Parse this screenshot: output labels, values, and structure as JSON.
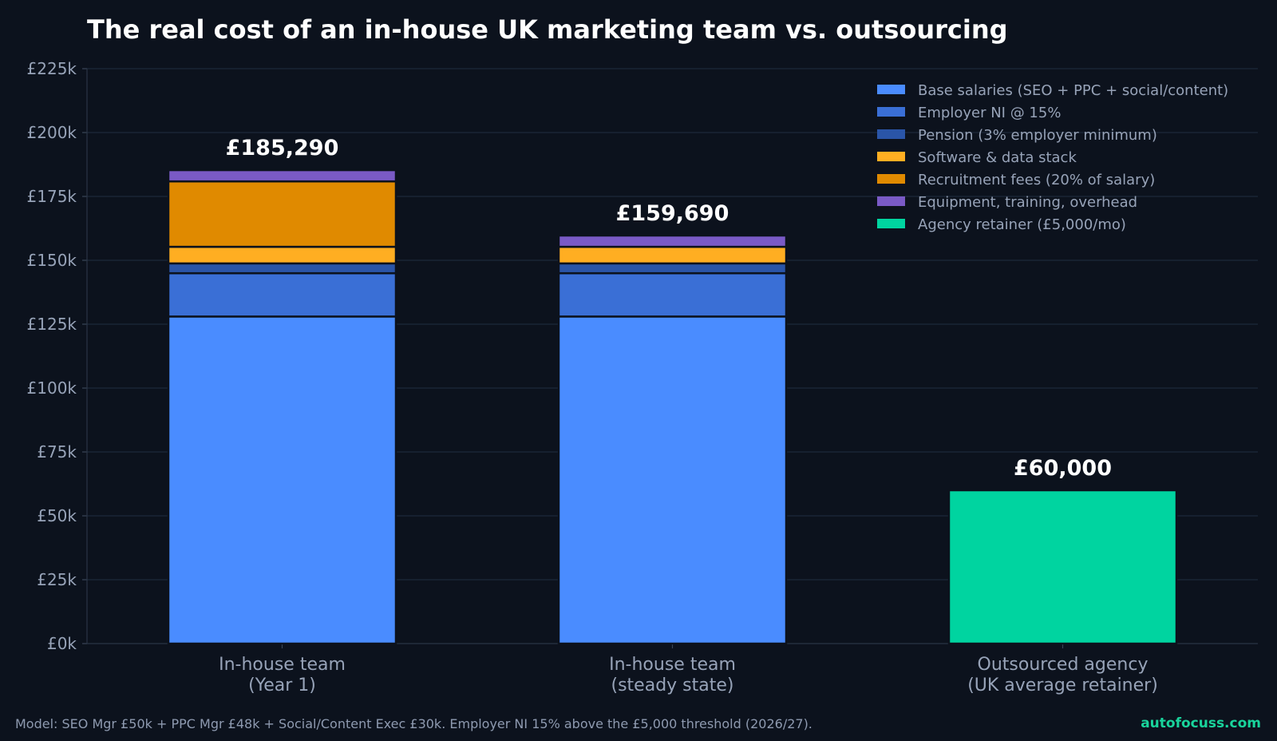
{
  "chart_data": {
    "type": "bar",
    "stacked": true,
    "title": "The real cost of an in-house UK marketing team vs. outsourcing",
    "xlabel": "",
    "ylabel": "",
    "ylim": [
      0,
      225000
    ],
    "yticks": [
      0,
      25000,
      50000,
      75000,
      100000,
      125000,
      150000,
      175000,
      200000,
      225000
    ],
    "ytick_labels": [
      "£0k",
      "£25k",
      "£50k",
      "£75k",
      "£100k",
      "£125k",
      "£150k",
      "£175k",
      "£200k",
      "£225k"
    ],
    "grid": true,
    "legend_position": "top-right",
    "categories": [
      [
        "In-house team",
        "(Year 1)"
      ],
      [
        "In-house team",
        "(steady state)"
      ],
      [
        "Outsourced agency",
        "(UK average retainer)"
      ]
    ],
    "totals": [
      "£185,290",
      "£159,690",
      "£60,000"
    ],
    "series": [
      {
        "name": "Base salaries (SEO + PPC + social/content)",
        "color": "#4a8cff",
        "values": [
          128000,
          128000,
          0
        ]
      },
      {
        "name": "Employer NI @ 15%",
        "color": "#3a6fd6",
        "values": [
          16950,
          16950,
          0
        ]
      },
      {
        "name": "Pension (3% employer minimum)",
        "color": "#2a55a8",
        "values": [
          3840,
          3840,
          0
        ]
      },
      {
        "name": "Software & data stack",
        "color": "#ffae22",
        "values": [
          6500,
          6500,
          0
        ]
      },
      {
        "name": "Recruitment fees (20% of salary)",
        "color": "#e08a00",
        "values": [
          25600,
          0,
          0
        ]
      },
      {
        "name": "Equipment, training, overhead",
        "color": "#7a5ac6",
        "values": [
          4400,
          4400,
          0
        ]
      },
      {
        "name": "Agency retainer (£5,000/mo)",
        "color": "#00d4a0",
        "values": [
          0,
          0,
          60000
        ]
      }
    ]
  },
  "footer": {
    "note": "Model: SEO Mgr £50k + PPC Mgr £48k + Social/Content Exec £30k. Employer NI 15% above the £5,000 threshold (2026/27).",
    "brand": "autofocuss.com"
  }
}
